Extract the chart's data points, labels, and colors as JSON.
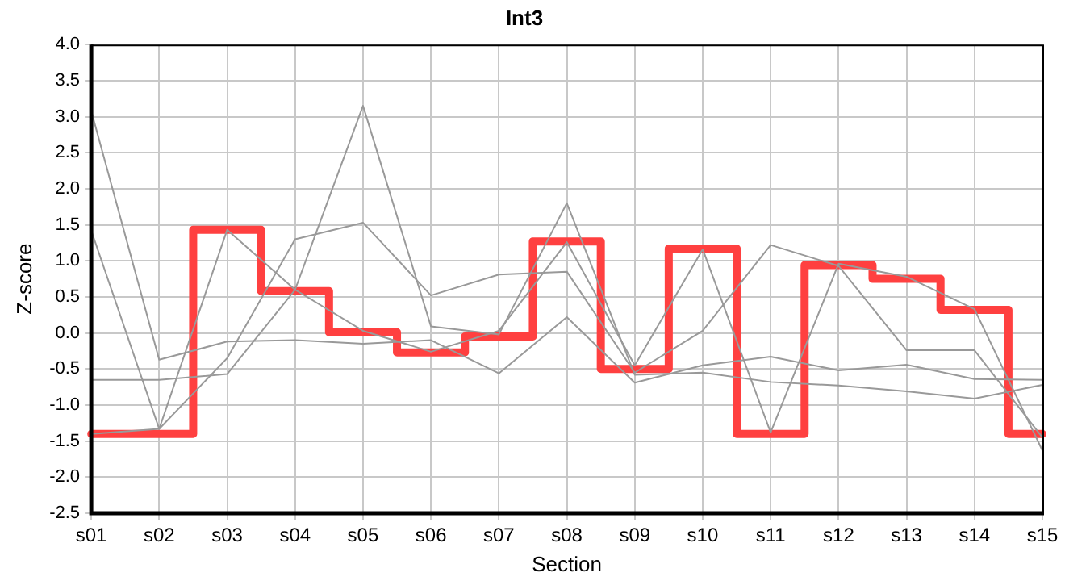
{
  "chart_data": {
    "type": "line",
    "title": "Int3",
    "xlabel": "Section",
    "ylabel": "Z-score",
    "categories": [
      "s01",
      "s02",
      "s03",
      "s04",
      "s05",
      "s06",
      "s07",
      "s08",
      "s09",
      "s10",
      "s11",
      "s12",
      "s13",
      "s14",
      "s15"
    ],
    "ylim": [
      -2.5,
      4.0
    ],
    "yticks": [
      {
        "value": -2.5,
        "label": "-2.5"
      },
      {
        "value": -2,
        "label": "-2.0"
      },
      {
        "value": -1.5,
        "label": "-1.5"
      },
      {
        "value": -1,
        "label": "-1.0"
      },
      {
        "value": -0.5,
        "label": "-0.5"
      },
      {
        "value": 0,
        "label": "0.0"
      },
      {
        "value": 0.5,
        "label": "0.5"
      },
      {
        "value": 1,
        "label": "1.0"
      },
      {
        "value": 1.5,
        "label": "1.5"
      },
      {
        "value": 2,
        "label": "2.0"
      },
      {
        "value": 2.5,
        "label": "2.5"
      },
      {
        "value": 3,
        "label": "3.0"
      },
      {
        "value": 3.5,
        "label": "3.5"
      },
      {
        "value": 4,
        "label": "4.0"
      }
    ],
    "grid": true,
    "legend": false,
    "marker": "none",
    "series": [
      {
        "type": "line",
        "color": "#999999",
        "values": [
          3.08,
          -0.37,
          -0.12,
          -0.1,
          -0.15,
          -0.1,
          -0.56,
          0.22,
          -0.69,
          -0.45,
          -0.33,
          -0.52,
          -0.44,
          -0.64,
          -0.65
        ]
      },
      {
        "type": "line",
        "color": "#999999",
        "values": [
          1.42,
          -1.33,
          1.43,
          0.6,
          0.03,
          -0.26,
          0.03,
          1.26,
          -0.45,
          1.16,
          -1.38,
          0.96,
          0.78,
          0.33,
          -1.63
        ]
      },
      {
        "type": "line",
        "color": "#999999",
        "values": [
          -1.4,
          -1.33,
          -0.35,
          1.3,
          1.53,
          0.52,
          0.81,
          0.85,
          -0.55,
          0.03,
          1.22,
          0.93,
          -0.24,
          -0.24,
          -1.45
        ]
      },
      {
        "type": "line",
        "color": "#999999",
        "values": [
          -0.65,
          -0.65,
          -0.57,
          0.6,
          3.15,
          0.09,
          -0.02,
          1.8,
          -0.58,
          -0.55,
          -0.68,
          -0.73,
          -0.81,
          -0.91,
          -0.72
        ]
      },
      {
        "type": "step",
        "color": "#ff4040",
        "values": [
          -1.4,
          -1.4,
          1.43,
          0.58,
          0.01,
          -0.27,
          -0.05,
          1.27,
          -0.5,
          1.17,
          -1.4,
          0.94,
          0.75,
          0.32,
          -1.4
        ]
      }
    ]
  }
}
